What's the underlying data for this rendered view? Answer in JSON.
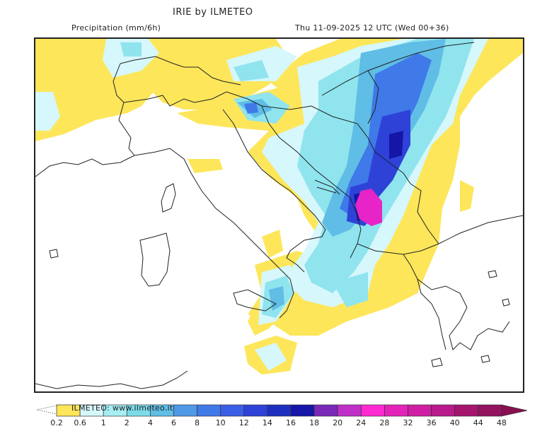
{
  "header": {
    "title": "IRIE by ILMETEO",
    "variable": "Precipitation (mm/6h)",
    "valid_time": "Thu 11-09-2025 12 UTC (Wed 00+36)"
  },
  "colorbar": {
    "watermark": "ILMETEO: www.ilmeteo.it",
    "labels": [
      "0.2",
      "0.6",
      "1",
      "2",
      "4",
      "6",
      "8",
      "10",
      "12",
      "14",
      "16",
      "18",
      "20",
      "24",
      "28",
      "32",
      "36",
      "40",
      "44",
      "48"
    ],
    "colors": [
      "#fde65a",
      "#d6f7fb",
      "#a5eef3",
      "#7cdbe9",
      "#5fbde6",
      "#4f99e6",
      "#3f7ae8",
      "#3a5ee6",
      "#2e42d8",
      "#1e2fc0",
      "#1515a8",
      "#7a28b8",
      "#c030c8",
      "#ff2ad2",
      "#e424b8",
      "#d01ea4",
      "#b81a8c",
      "#a6146e",
      "#941260"
    ],
    "over_color": "#8a0f50"
  },
  "map": {
    "region": "Central Mediterranean / Balkans",
    "max_precip_area": "Montenegro / Albania",
    "colors": {
      "yellow": "#fde65a",
      "light_cyan": "#d6f7fb",
      "cyan": "#8fe4ee",
      "blue_light": "#5fbde6",
      "blue": "#3f7ae8",
      "blue_dark": "#2e42d8",
      "navy": "#1515a8",
      "magenta": "#e624c8",
      "border_line": "#222222"
    }
  }
}
